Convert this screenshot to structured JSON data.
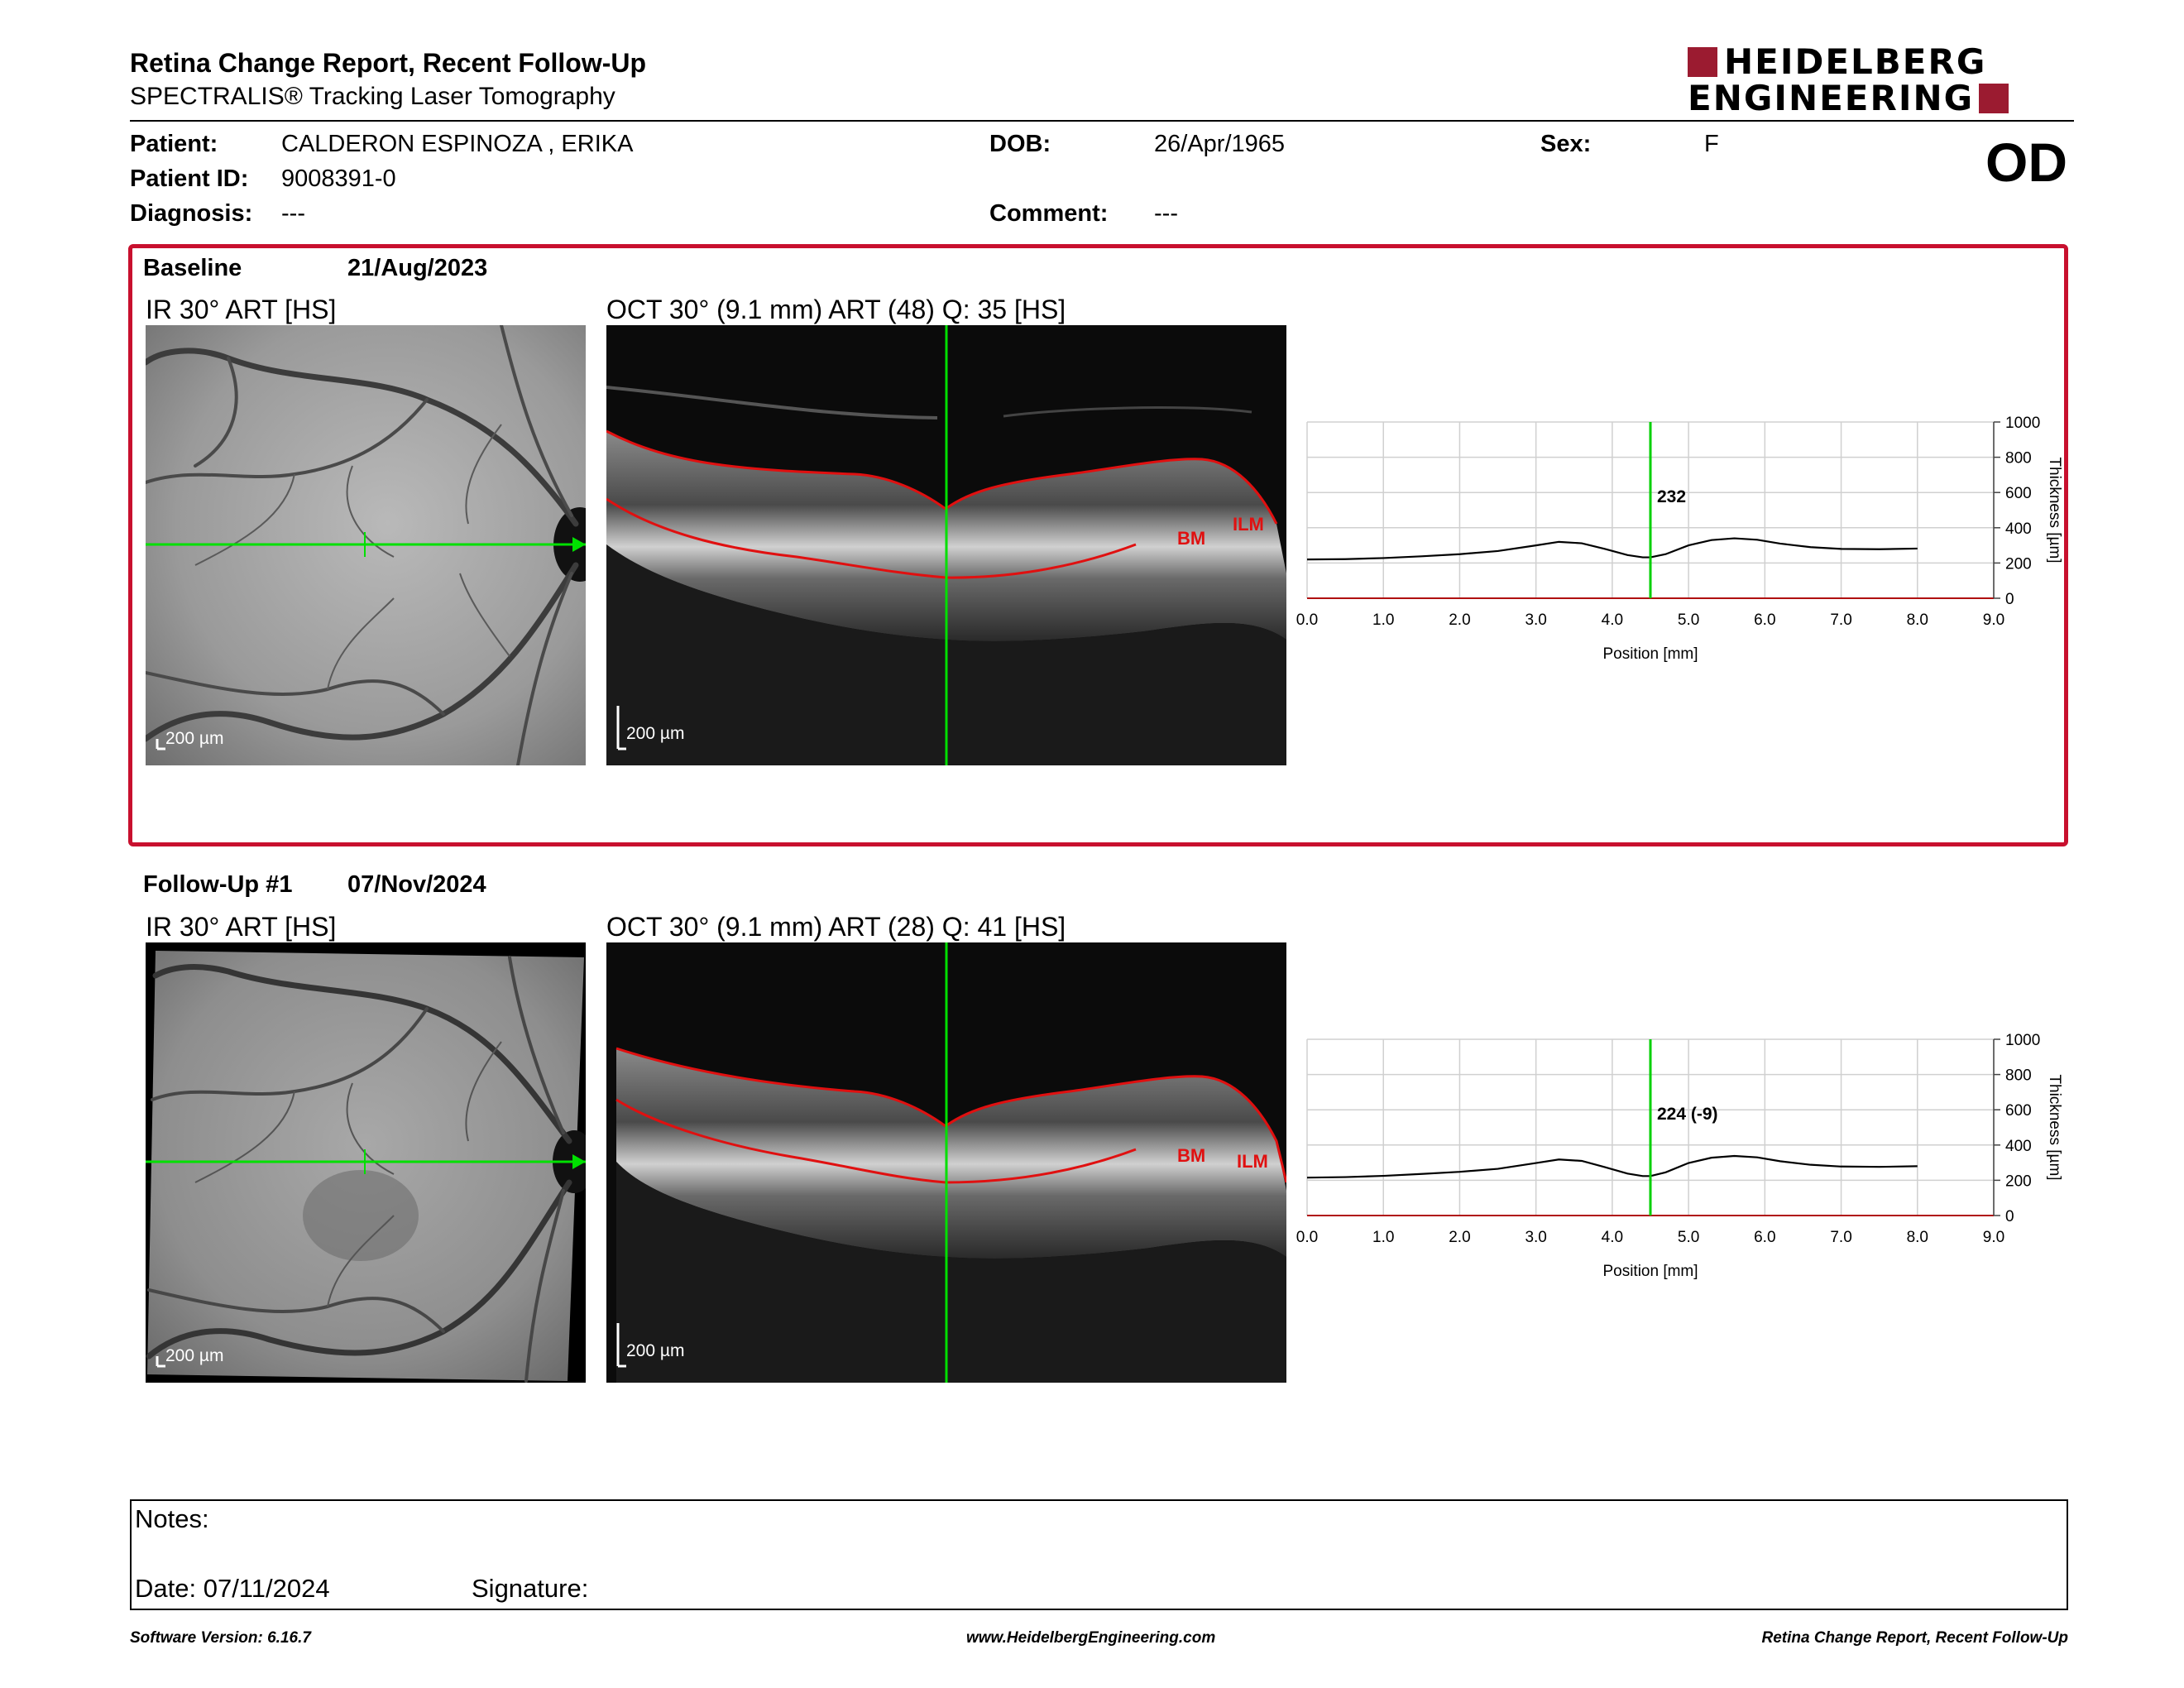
{
  "header": {
    "title": "Retina Change Report, Recent Follow-Up",
    "subtitle": "SPECTRALIS® Tracking Laser Tomography",
    "logo_line1": "HEIDELBERG",
    "logo_line2": "ENGINEERING",
    "eye": "OD",
    "brand_color": "#9b1b30"
  },
  "patient": {
    "name_label": "Patient:",
    "name": "CALDERON ESPINOZA , ERIKA",
    "id_label": "Patient ID:",
    "id": "9008391-0",
    "diagnosis_label": "Diagnosis:",
    "diagnosis": "---",
    "dob_label": "DOB:",
    "dob": "26/Apr/1965",
    "comment_label": "Comment:",
    "comment": "---",
    "sex_label": "Sex:",
    "sex": "F"
  },
  "baseline": {
    "label": "Baseline",
    "date": "21/Aug/2023",
    "ir_caption": "IR 30° ART [HS]",
    "oct_caption": "OCT 30° (9.1 mm) ART (48) Q: 35 [HS]",
    "ir_scale": "200 µm",
    "oct_scale": "200 µm",
    "layer_bm": "BM",
    "layer_ilm": "ILM",
    "thickness_label": "232"
  },
  "followup": {
    "label": "Follow-Up #1",
    "date": "07/Nov/2024",
    "ir_caption": "IR 30° ART [HS]",
    "oct_caption": "OCT 30° (9.1 mm) ART (28) Q: 41 [HS]",
    "ir_scale": "200 µm",
    "oct_scale": "200 µm",
    "layer_bm": "BM",
    "layer_ilm": "ILM",
    "thickness_label": "224 (-9)"
  },
  "notes": {
    "notes_label": "Notes:",
    "date_label": "Date: 07/11/2024",
    "signature_label": "Signature:"
  },
  "footer": {
    "software": "Software Version: 6.16.7",
    "website": "www.HeidelbergEngineering.com",
    "report_name": "Retina Change Report, Recent Follow-Up"
  },
  "chart_data": [
    {
      "type": "line",
      "name": "baseline-thickness-profile",
      "xlabel": "Position [mm]",
      "ylabel": "Thickness [µm]",
      "xlim": [
        0,
        9
      ],
      "ylim": [
        0,
        1000
      ],
      "x_ticks": [
        "0.0",
        "1.0",
        "2.0",
        "3.0",
        "4.0",
        "5.0",
        "6.0",
        "7.0",
        "8.0",
        "9.0"
      ],
      "y_ticks": [
        "0",
        "200",
        "400",
        "600",
        "800",
        "1000"
      ],
      "grid": true,
      "marker_x": 4.5,
      "marker_label": "232",
      "series": [
        {
          "x": [
            0.0,
            0.5,
            1.0,
            1.5,
            2.0,
            2.5,
            3.0,
            3.3,
            3.6,
            3.9,
            4.2,
            4.4,
            4.5,
            4.7,
            5.0,
            5.3,
            5.6,
            5.9,
            6.2,
            6.6,
            7.0,
            7.5,
            8.0
          ],
          "values": [
            220,
            222,
            228,
            238,
            250,
            268,
            300,
            320,
            312,
            280,
            245,
            232,
            232,
            250,
            300,
            330,
            340,
            332,
            310,
            290,
            280,
            278,
            282
          ]
        }
      ]
    },
    {
      "type": "line",
      "name": "followup-thickness-profile",
      "xlabel": "Position [mm]",
      "ylabel": "Thickness [µm]",
      "xlim": [
        0,
        9
      ],
      "ylim": [
        0,
        1000
      ],
      "x_ticks": [
        "0.0",
        "1.0",
        "2.0",
        "3.0",
        "4.0",
        "5.0",
        "6.0",
        "7.0",
        "8.0",
        "9.0"
      ],
      "y_ticks": [
        "0",
        "200",
        "400",
        "600",
        "800",
        "1000"
      ],
      "grid": true,
      "marker_x": 4.5,
      "marker_label": "224 (-9)",
      "series": [
        {
          "x": [
            0.0,
            0.5,
            1.0,
            1.5,
            2.0,
            2.5,
            3.0,
            3.3,
            3.6,
            3.9,
            4.2,
            4.4,
            4.5,
            4.7,
            5.0,
            5.3,
            5.6,
            5.9,
            6.2,
            6.6,
            7.0,
            7.5,
            8.0
          ],
          "values": [
            215,
            218,
            225,
            236,
            248,
            265,
            298,
            318,
            310,
            275,
            238,
            224,
            224,
            245,
            298,
            328,
            338,
            330,
            308,
            288,
            278,
            276,
            280
          ]
        }
      ]
    }
  ]
}
